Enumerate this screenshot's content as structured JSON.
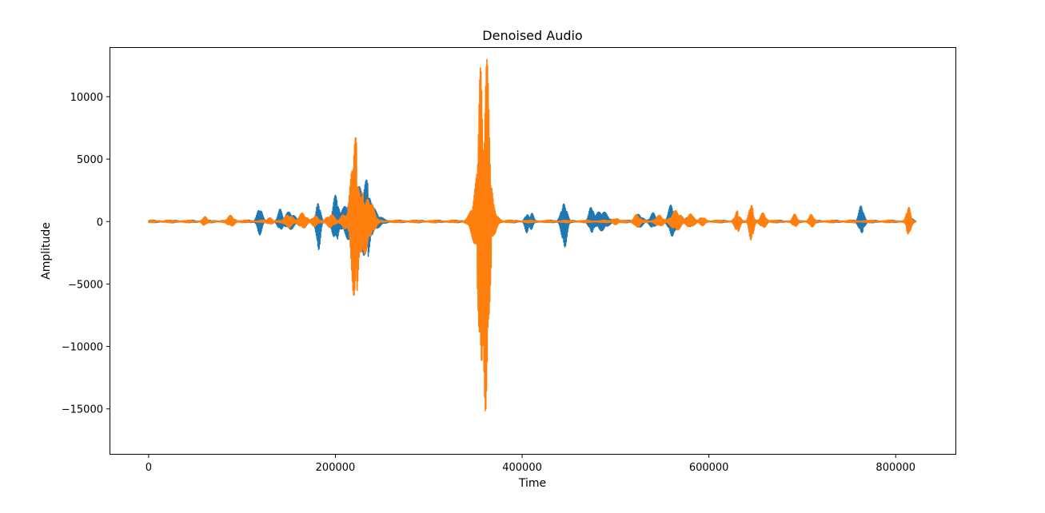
{
  "chart_data": {
    "type": "line",
    "title": "Denoised Audio",
    "xlabel": "Time",
    "ylabel": "Amplitude",
    "xlim": [
      -41000,
      864000
    ],
    "ylim": [
      -18600,
      13900
    ],
    "x_ticks": [
      0,
      200000,
      400000,
      600000,
      800000
    ],
    "x_tick_labels": [
      "0",
      "200000",
      "400000",
      "600000",
      "800000"
    ],
    "y_ticks": [
      -15000,
      -10000,
      -5000,
      0,
      5000,
      10000
    ],
    "y_tick_labels": [
      "−15000",
      "−10000",
      "−5000",
      "0",
      "5000",
      "10000"
    ],
    "grid": false,
    "legend": "none",
    "series": [
      {
        "color": "#1f77b4",
        "bursts": [
          {
            "center": 119000,
            "width": 2500,
            "amp": 1300
          },
          {
            "center": 141000,
            "width": 2500,
            "amp": 1000
          },
          {
            "center": 151000,
            "width": 5000,
            "amp": 800
          },
          {
            "center": 181000,
            "width": 2000,
            "amp": 1800
          },
          {
            "center": 182000,
            "width": 2000,
            "amp": -2300
          },
          {
            "center": 200000,
            "width": 3000,
            "amp": 2100
          },
          {
            "center": 201500,
            "width": 3000,
            "amp": -1700
          },
          {
            "center": 225000,
            "width": 12000,
            "amp": 2800
          },
          {
            "center": 232000,
            "width": 5000,
            "amp": 3500
          },
          {
            "center": 233000,
            "width": 5000,
            "amp": -3200
          },
          {
            "center": 351000,
            "width": 3000,
            "amp": 2000
          },
          {
            "center": 365000,
            "width": 3000,
            "amp": -2000
          },
          {
            "center": 405000,
            "width": 2000,
            "amp": -900
          },
          {
            "center": 410000,
            "width": 2000,
            "amp": 800
          },
          {
            "center": 444000,
            "width": 2500,
            "amp": 1700
          },
          {
            "center": 445500,
            "width": 2500,
            "amp": -2100
          },
          {
            "center": 474000,
            "width": 2500,
            "amp": 1200
          },
          {
            "center": 475000,
            "width": 2500,
            "amp": -1100
          },
          {
            "center": 485000,
            "width": 6000,
            "amp": 900
          },
          {
            "center": 525000,
            "width": 4000,
            "amp": 600
          },
          {
            "center": 540000,
            "width": 3000,
            "amp": 700
          },
          {
            "center": 560000,
            "width": 3000,
            "amp": 1500
          },
          {
            "center": 561500,
            "width": 3000,
            "amp": -1100
          },
          {
            "center": 580000,
            "width": 4000,
            "amp": 500
          },
          {
            "center": 763000,
            "width": 2500,
            "amp": 1300
          },
          {
            "center": 764000,
            "width": 2500,
            "amp": -1000
          },
          {
            "center": 815000,
            "width": 2500,
            "amp": 600
          }
        ]
      },
      {
        "color": "#ff7f0e",
        "bursts": [
          {
            "center": 60000,
            "width": 2500,
            "amp": 400
          },
          {
            "center": 88000,
            "width": 3500,
            "amp": 500
          },
          {
            "center": 130000,
            "width": 3000,
            "amp": 300
          },
          {
            "center": 150000,
            "width": 4000,
            "amp": 600
          },
          {
            "center": 165000,
            "width": 4000,
            "amp": 700
          },
          {
            "center": 178000,
            "width": 3000,
            "amp": 500
          },
          {
            "center": 195000,
            "width": 4000,
            "amp": 600
          },
          {
            "center": 210000,
            "width": 3500,
            "amp": 700
          },
          {
            "center": 220500,
            "width": 3500,
            "amp": 7600
          },
          {
            "center": 221500,
            "width": 3500,
            "amp": -6300
          },
          {
            "center": 227000,
            "width": 5000,
            "amp": 3000
          },
          {
            "center": 232000,
            "width": 5000,
            "amp": -2600
          },
          {
            "center": 238000,
            "width": 4000,
            "amp": 1500
          },
          {
            "center": 355000,
            "width": 2500,
            "amp": 10300
          },
          {
            "center": 355600,
            "width": 2500,
            "amp": -15200
          },
          {
            "center": 361000,
            "width": 3000,
            "amp": 12300
          },
          {
            "center": 361600,
            "width": 3000,
            "amp": -17000
          },
          {
            "center": 358000,
            "width": 7000,
            "amp": 6000
          },
          {
            "center": 366000,
            "width": 3000,
            "amp": 3000
          },
          {
            "center": 369000,
            "width": 3000,
            "amp": 1500
          },
          {
            "center": 500000,
            "width": 3000,
            "amp": 300
          },
          {
            "center": 523000,
            "width": 3000,
            "amp": 600
          },
          {
            "center": 547000,
            "width": 4000,
            "amp": 500
          },
          {
            "center": 565000,
            "width": 5000,
            "amp": 900
          },
          {
            "center": 580000,
            "width": 4000,
            "amp": 600
          },
          {
            "center": 593000,
            "width": 3000,
            "amp": 400
          },
          {
            "center": 630000,
            "width": 2500,
            "amp": 900
          },
          {
            "center": 631000,
            "width": 2500,
            "amp": -800
          },
          {
            "center": 645000,
            "width": 2000,
            "amp": 1800
          },
          {
            "center": 646000,
            "width": 2000,
            "amp": -1300
          },
          {
            "center": 658000,
            "width": 3000,
            "amp": 700
          },
          {
            "center": 692000,
            "width": 2500,
            "amp": 600
          },
          {
            "center": 710000,
            "width": 2500,
            "amp": 600
          },
          {
            "center": 813000,
            "width": 2000,
            "amp": 900
          },
          {
            "center": 814000,
            "width": 2000,
            "amp": -1400
          }
        ]
      }
    ]
  }
}
